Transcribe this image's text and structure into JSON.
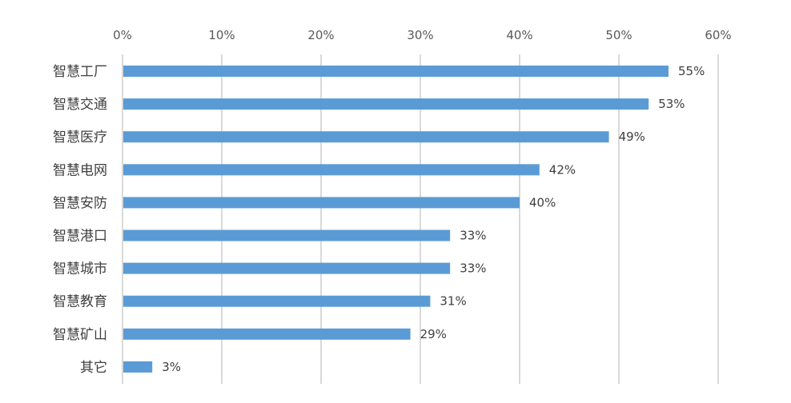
{
  "chart_data": {
    "type": "bar",
    "orientation": "horizontal",
    "categories": [
      "智慧工厂",
      "智慧交通",
      "智慧医疗",
      "智慧电网",
      "智慧安防",
      "智慧港口",
      "智慧城市",
      "智慧教育",
      "智慧矿山",
      "其它"
    ],
    "values": [
      55,
      53,
      49,
      42,
      40,
      33,
      33,
      31,
      29,
      3
    ],
    "value_labels": [
      "55%",
      "53%",
      "49%",
      "42%",
      "40%",
      "33%",
      "33%",
      "31%",
      "29%",
      "3%"
    ],
    "x_ticks": [
      "0%",
      "10%",
      "20%",
      "30%",
      "40%",
      "50%",
      "60%"
    ],
    "xlim": [
      0,
      60
    ],
    "x_axis_position": "top",
    "grid": true,
    "legend": "none",
    "title": "",
    "xlabel": "",
    "ylabel": "",
    "bar_color": "#5b9bd5"
  }
}
